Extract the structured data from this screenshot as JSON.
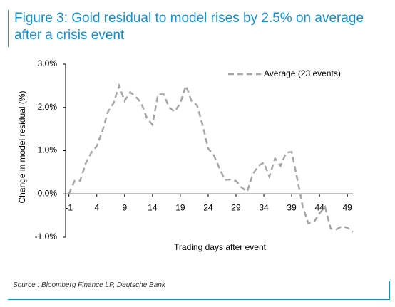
{
  "chart_data": {
    "type": "line",
    "title": "Figure 3: Gold residual to model rises by 2.5% on average after a crisis event",
    "source": "Source : Bloomberg Finance LP, Deutsche Bank",
    "x_label": "Trading days after event",
    "y_label": "Change in model residual (%)",
    "x": [
      -1,
      0,
      1,
      2,
      3,
      4,
      5,
      6,
      7,
      8,
      9,
      10,
      11,
      12,
      13,
      14,
      15,
      16,
      17,
      18,
      19,
      20,
      21,
      22,
      23,
      24,
      25,
      26,
      27,
      28,
      29,
      30,
      31,
      32,
      33,
      34,
      35,
      36,
      37,
      38,
      39,
      40,
      41,
      42,
      43,
      44,
      45,
      46,
      47,
      48,
      49,
      50
    ],
    "series": [
      {
        "name": "Average (23 events)",
        "color": "#a6a6a6",
        "values": [
          0.0,
          0.3,
          0.3,
          0.7,
          0.95,
          1.1,
          1.45,
          1.9,
          2.1,
          2.5,
          2.15,
          2.35,
          2.25,
          2.1,
          1.75,
          1.6,
          2.3,
          2.3,
          2.0,
          1.9,
          2.1,
          2.5,
          2.15,
          2.05,
          1.6,
          1.05,
          0.9,
          0.6,
          0.33,
          0.33,
          0.3,
          0.15,
          0.05,
          0.45,
          0.65,
          0.72,
          0.4,
          0.82,
          0.65,
          0.95,
          0.97,
          0.35,
          -0.3,
          -0.68,
          -0.65,
          -0.45,
          -0.3,
          -0.8,
          -0.82,
          -0.75,
          -0.78,
          -0.88
        ]
      }
    ],
    "xlim": [
      -1.6,
      50
    ],
    "xticks": [
      -1,
      4,
      9,
      14,
      19,
      24,
      29,
      34,
      39,
      44,
      49
    ],
    "ylim": [
      -1,
      3
    ],
    "yticks": [
      {
        "value": -1,
        "label": "-1.0%"
      },
      {
        "value": 0,
        "label": "0.0%"
      },
      {
        "value": 1,
        "label": "1.0%"
      },
      {
        "value": 2,
        "label": "2.0%"
      },
      {
        "value": 3,
        "label": "3.0%"
      }
    ],
    "legend": "top-right",
    "grid": false
  }
}
